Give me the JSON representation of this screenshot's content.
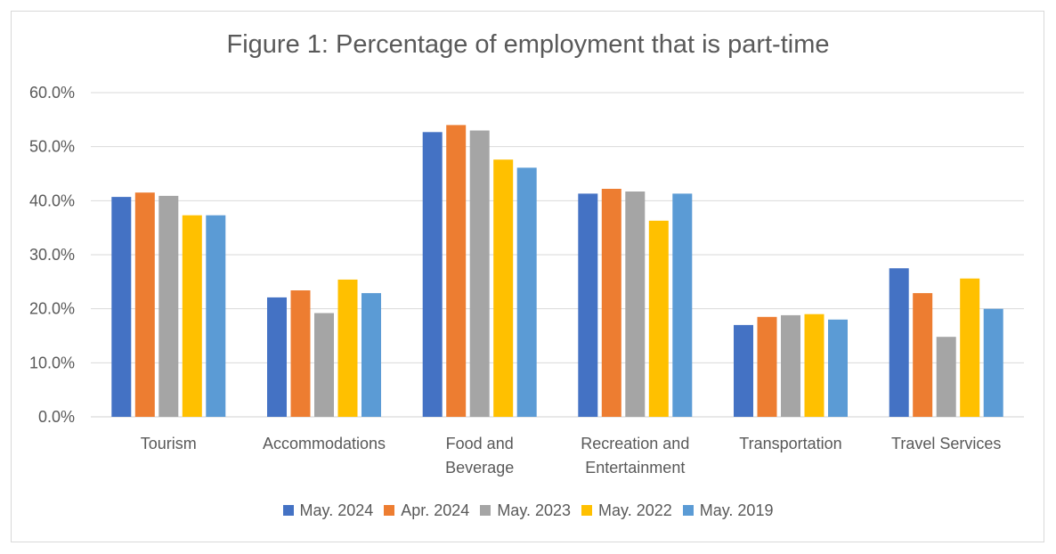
{
  "chart_data": {
    "type": "bar",
    "title": "Figure 1: Percentage of employment that is part-time",
    "categories": [
      [
        "Tourism"
      ],
      [
        "Accommodations"
      ],
      [
        "Food and",
        "Beverage"
      ],
      [
        "Recreation and",
        "Entertainment"
      ],
      [
        "Transportation"
      ],
      [
        "Travel Services"
      ]
    ],
    "series": [
      {
        "name": "May. 2024",
        "color": "#4472C4",
        "values": [
          40.7,
          22.1,
          52.7,
          41.3,
          17.0,
          27.5
        ]
      },
      {
        "name": "Apr. 2024",
        "color": "#ED7D31",
        "values": [
          41.5,
          23.4,
          54.0,
          42.2,
          18.5,
          22.9
        ]
      },
      {
        "name": "May. 2023",
        "color": "#A5A5A5",
        "values": [
          40.9,
          19.2,
          53.0,
          41.7,
          18.8,
          14.8
        ]
      },
      {
        "name": "May. 2022",
        "color": "#FFC000",
        "values": [
          37.3,
          25.4,
          47.6,
          36.3,
          19.0,
          25.6
        ]
      },
      {
        "name": "May. 2019",
        "color": "#5B9BD5",
        "values": [
          37.3,
          22.9,
          46.1,
          41.3,
          18.0,
          20.0
        ]
      }
    ],
    "yticks": [
      "0.0%",
      "10.0%",
      "20.0%",
      "30.0%",
      "40.0%",
      "50.0%",
      "60.0%"
    ],
    "ylim": [
      0,
      60
    ],
    "grid": true,
    "legend_position": "bottom"
  }
}
